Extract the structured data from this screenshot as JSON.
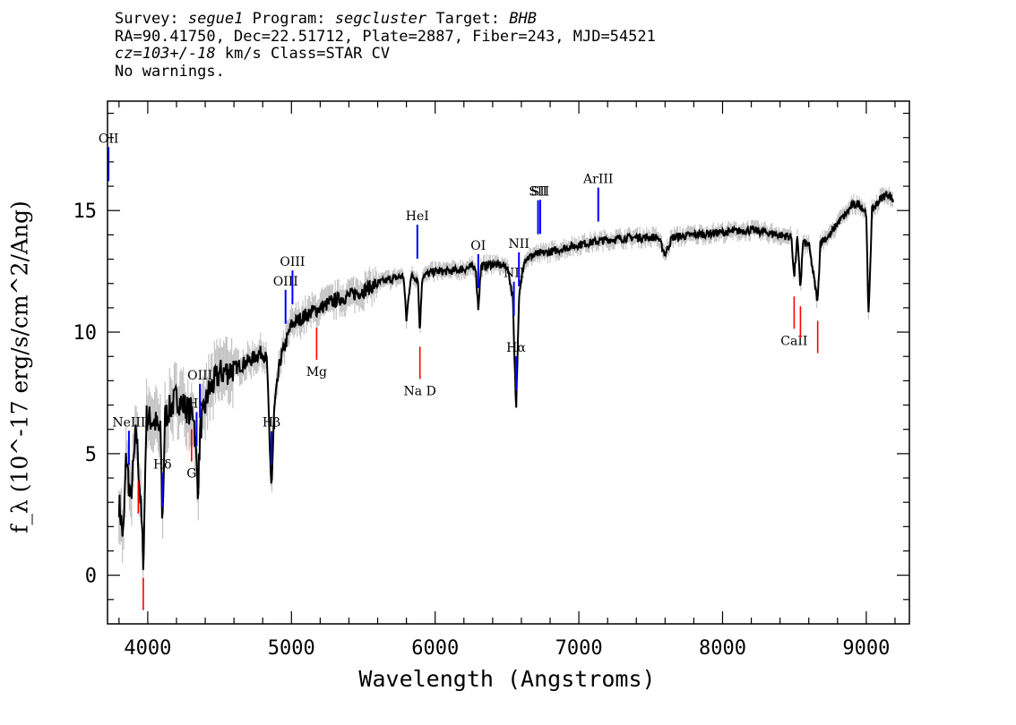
{
  "header": {
    "survey_label": "Survey:",
    "survey": "segue1",
    "program_label": "Program:",
    "program": "segcluster",
    "target_label": "Target:",
    "target": "BHB",
    "line2": "RA=90.41750, Dec=22.51712, Plate=2887, Fiber=243, MJD=54521",
    "cz": "cz=103+/-18",
    "cz_unit": "km/s",
    "class": "Class=STAR CV",
    "warnings": "No warnings."
  },
  "chart_data": {
    "type": "line",
    "xlabel": "Wavelength (Angstroms)",
    "ylabel": "f_λ (10^-17 erg/s/cm^2/Ang)",
    "xlim": [
      3720,
      9300
    ],
    "ylim": [
      -2,
      19.5
    ],
    "x_ticks": [
      4000,
      5000,
      6000,
      7000,
      8000,
      9000
    ],
    "y_ticks": [
      0,
      5,
      10,
      15
    ],
    "grid": false,
    "series": [
      {
        "style": "black line with grey noise band",
        "points": [
          [
            3800,
            3.0
          ],
          [
            3830,
            1.5
          ],
          [
            3850,
            5.0
          ],
          [
            3880,
            3.0
          ],
          [
            3920,
            6.0
          ],
          [
            3950,
            3.0
          ],
          [
            3970,
            0.5
          ],
          [
            3990,
            6.5
          ],
          [
            4050,
            6.3
          ],
          [
            4090,
            5.8
          ],
          [
            4102,
            2.0
          ],
          [
            4120,
            6.5
          ],
          [
            4200,
            7.3
          ],
          [
            4280,
            6.8
          ],
          [
            4320,
            6.7
          ],
          [
            4340,
            4.5
          ],
          [
            4350,
            3.5
          ],
          [
            4365,
            6.0
          ],
          [
            4420,
            7.5
          ],
          [
            4500,
            8.3
          ],
          [
            4600,
            8.5
          ],
          [
            4700,
            8.8
          ],
          [
            4800,
            9.2
          ],
          [
            4830,
            8.8
          ],
          [
            4850,
            5.0
          ],
          [
            4862,
            3.6
          ],
          [
            4880,
            6.8
          ],
          [
            4920,
            8.8
          ],
          [
            5000,
            10.3
          ],
          [
            5100,
            10.7
          ],
          [
            5200,
            11.0
          ],
          [
            5300,
            11.3
          ],
          [
            5400,
            11.5
          ],
          [
            5500,
            11.7
          ],
          [
            5600,
            12.0
          ],
          [
            5700,
            12.2
          ],
          [
            5780,
            12.3
          ],
          [
            5800,
            10.5
          ],
          [
            5830,
            12.3
          ],
          [
            5880,
            12.2
          ],
          [
            5893,
            10.0
          ],
          [
            5910,
            12.3
          ],
          [
            6000,
            12.5
          ],
          [
            6100,
            12.5
          ],
          [
            6200,
            12.6
          ],
          [
            6280,
            12.7
          ],
          [
            6300,
            11.0
          ],
          [
            6320,
            12.7
          ],
          [
            6400,
            12.8
          ],
          [
            6500,
            12.7
          ],
          [
            6540,
            11.5
          ],
          [
            6563,
            6.8
          ],
          [
            6585,
            11.5
          ],
          [
            6620,
            13.0
          ],
          [
            6700,
            13.2
          ],
          [
            6800,
            13.3
          ],
          [
            7000,
            13.6
          ],
          [
            7200,
            13.8
          ],
          [
            7400,
            13.9
          ],
          [
            7550,
            13.9
          ],
          [
            7600,
            13.2
          ],
          [
            7650,
            13.9
          ],
          [
            7800,
            14.0
          ],
          [
            8000,
            14.1
          ],
          [
            8200,
            14.2
          ],
          [
            8400,
            14.0
          ],
          [
            8480,
            13.9
          ],
          [
            8498,
            12.2
          ],
          [
            8520,
            13.9
          ],
          [
            8542,
            11.8
          ],
          [
            8560,
            13.7
          ],
          [
            8600,
            13.6
          ],
          [
            8662,
            11.2
          ],
          [
            8680,
            13.7
          ],
          [
            8750,
            14.0
          ],
          [
            8800,
            14.5
          ],
          [
            8850,
            14.8
          ],
          [
            8900,
            15.2
          ],
          [
            8950,
            15.3
          ],
          [
            9000,
            14.9
          ],
          [
            9015,
            10.5
          ],
          [
            9040,
            15.0
          ],
          [
            9100,
            15.5
          ],
          [
            9150,
            15.7
          ],
          [
            9190,
            15.4
          ]
        ]
      }
    ],
    "annotations": [
      {
        "label": "OII",
        "x": 3727,
        "color": "#0000ff"
      },
      {
        "label": "NeIII",
        "x": 3869,
        "color": "#0000ff"
      },
      {
        "label": "Hδ",
        "x": 4102,
        "color": "#0000ff"
      },
      {
        "label": "Hγ",
        "x": 4340,
        "color": "#0000ff"
      },
      {
        "label": "OIII",
        "x": 4363,
        "color": "#0000ff"
      },
      {
        "label": "Hβ",
        "x": 4861,
        "color": "#0000ff"
      },
      {
        "label": "OIII",
        "x": 4959,
        "color": "#0000ff"
      },
      {
        "label": "OIII",
        "x": 5007,
        "color": "#0000ff"
      },
      {
        "label": "HeI",
        "x": 5876,
        "color": "#0000ff"
      },
      {
        "label": "OI",
        "x": 6300,
        "color": "#0000ff"
      },
      {
        "label": "NII",
        "x": 6548,
        "color": "#0000ff"
      },
      {
        "label": "Hα",
        "x": 6563,
        "color": "#0000ff"
      },
      {
        "label": "NII",
        "x": 6583,
        "color": "#0000ff"
      },
      {
        "label": "SII",
        "x": 6716,
        "color": "#0000ff"
      },
      {
        "label": "SII",
        "x": 6731,
        "color": "#0000ff"
      },
      {
        "label": "ArIII",
        "x": 7135,
        "color": "#0000ff"
      },
      {
        "label": "",
        "x": 3934,
        "color": "#ff0000"
      },
      {
        "label": "",
        "x": 3969,
        "color": "#ff0000"
      },
      {
        "label": "G",
        "x": 4305,
        "color": "#ff0000"
      },
      {
        "label": "Mg",
        "x": 5175,
        "color": "#ff0000"
      },
      {
        "label": "Na D",
        "x": 5894,
        "color": "#ff0000"
      },
      {
        "label": "CaII",
        "x": 8498,
        "color": "#ff0000"
      },
      {
        "label": "",
        "x": 8542,
        "color": "#ff0000"
      },
      {
        "label": "",
        "x": 8662,
        "color": "#ff0000"
      }
    ]
  }
}
